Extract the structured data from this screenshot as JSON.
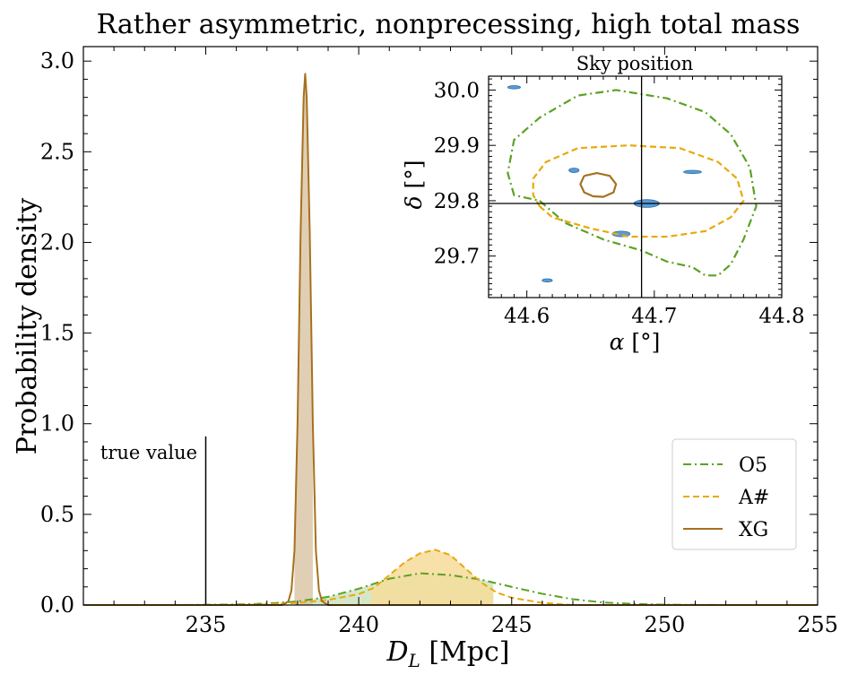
{
  "chart_data": [
    {
      "type": "line",
      "title": "Rather asymmetric, nonprecessing, high total mass",
      "xlabel": "D_L [Mpc]",
      "ylabel": "Probability density",
      "xlim": [
        231,
        255
      ],
      "ylim": [
        0,
        3.08
      ],
      "xticks": [
        235,
        240,
        245,
        250,
        255
      ],
      "yticks": [
        0.0,
        0.5,
        1.0,
        1.5,
        2.0,
        2.5,
        3.0
      ],
      "xtick_labels": [
        "235",
        "240",
        "245",
        "250",
        "255"
      ],
      "ytick_labels": [
        "0.0",
        "0.5",
        "1.0",
        "1.5",
        "2.0",
        "2.5",
        "3.0"
      ],
      "grid": false,
      "legend_position": "lower-right",
      "true_value": {
        "x": 235,
        "label": "true value",
        "line_top": 0.93
      },
      "series": [
        {
          "name": "O5",
          "style": "dashdot",
          "color": "#5ba223",
          "fill": "#cfe3bf",
          "shaded_range": [
            238.2,
            244.4
          ],
          "x": [
            231,
            234,
            236,
            237,
            238,
            239,
            240,
            241,
            242,
            243,
            244,
            245,
            246,
            247,
            248,
            249,
            250,
            252,
            255
          ],
          "y": [
            0.0,
            0.0,
            0.003,
            0.008,
            0.02,
            0.045,
            0.09,
            0.145,
            0.175,
            0.165,
            0.14,
            0.1,
            0.062,
            0.032,
            0.014,
            0.006,
            0.002,
            0.0,
            0.0
          ]
        },
        {
          "name": "A#",
          "style": "dashed",
          "color": "#e8a90a",
          "fill": "#f6dc9a",
          "shaded_range": [
            240.4,
            244.4
          ],
          "x": [
            231,
            236,
            237,
            238,
            239,
            240,
            240.5,
            241,
            241.5,
            242,
            242.5,
            243,
            243.5,
            244,
            244.5,
            245,
            246,
            247,
            255
          ],
          "y": [
            0.0,
            0.0,
            0.004,
            0.012,
            0.028,
            0.06,
            0.095,
            0.165,
            0.235,
            0.285,
            0.305,
            0.275,
            0.2,
            0.125,
            0.07,
            0.04,
            0.012,
            0.0,
            0.0
          ]
        },
        {
          "name": "XG",
          "style": "solid",
          "color": "#a6711f",
          "fill": "#dcc7a8",
          "shaded_range": [
            237.9,
            238.5
          ],
          "x": [
            231,
            237.5,
            237.7,
            237.8,
            237.9,
            238.0,
            238.1,
            238.2,
            238.25,
            238.3,
            238.4,
            238.5,
            238.6,
            238.7,
            238.8,
            239.0,
            255
          ],
          "y": [
            0.0,
            0.0,
            0.02,
            0.08,
            0.3,
            1.0,
            2.05,
            2.8,
            2.93,
            2.8,
            2.05,
            1.0,
            0.3,
            0.08,
            0.02,
            0.0,
            0.0
          ]
        }
      ]
    },
    {
      "type": "scatter",
      "title": "Sky position",
      "xlabel": "α [°]",
      "ylabel": "δ [°]",
      "xlim": [
        44.57,
        44.8
      ],
      "ylim": [
        29.625,
        30.025
      ],
      "xticks": [
        44.6,
        44.7,
        44.8
      ],
      "yticks": [
        29.7,
        29.8,
        29.9,
        30.0
      ],
      "xtick_labels": [
        "44.6",
        "44.7",
        "44.8"
      ],
      "ytick_labels": [
        "29.7",
        "29.8",
        "29.9",
        "30.0"
      ],
      "crosshair": {
        "x": 44.69,
        "y": 29.795
      },
      "contours": [
        {
          "name": "O5",
          "style": "dashdot",
          "color": "#5ba223",
          "points": [
            [
              44.61,
              29.8
            ],
            [
              44.63,
              29.76
            ],
            [
              44.66,
              29.73
            ],
            [
              44.69,
              29.71
            ],
            [
              44.71,
              29.69
            ],
            [
              44.73,
              29.68
            ],
            [
              44.74,
              29.665
            ],
            [
              44.75,
              29.665
            ],
            [
              44.76,
              29.685
            ],
            [
              44.77,
              29.73
            ],
            [
              44.78,
              29.79
            ],
            [
              44.775,
              29.86
            ],
            [
              44.76,
              29.92
            ],
            [
              44.74,
              29.96
            ],
            [
              44.71,
              29.985
            ],
            [
              44.67,
              30.0
            ],
            [
              44.64,
              29.99
            ],
            [
              44.61,
              29.95
            ],
            [
              44.59,
              29.91
            ],
            [
              44.585,
              29.85
            ],
            [
              44.59,
              29.81
            ],
            [
              44.61,
              29.8
            ]
          ]
        },
        {
          "name": "A#",
          "style": "dashed",
          "color": "#e8a90a",
          "points": [
            [
              44.61,
              29.79
            ],
            [
              44.62,
              29.77
            ],
            [
              44.65,
              29.75
            ],
            [
              44.68,
              29.735
            ],
            [
              44.71,
              29.735
            ],
            [
              44.74,
              29.745
            ],
            [
              44.76,
              29.77
            ],
            [
              44.77,
              29.8
            ],
            [
              44.765,
              29.84
            ],
            [
              44.75,
              29.87
            ],
            [
              44.72,
              29.895
            ],
            [
              44.68,
              29.9
            ],
            [
              44.64,
              29.895
            ],
            [
              44.615,
              29.87
            ],
            [
              44.605,
              29.84
            ],
            [
              44.605,
              29.81
            ],
            [
              44.61,
              29.79
            ]
          ]
        },
        {
          "name": "XG",
          "style": "solid",
          "color": "#a6711f",
          "points": [
            [
              44.645,
              29.845
            ],
            [
              44.655,
              29.85
            ],
            [
              44.665,
              29.845
            ],
            [
              44.67,
              29.83
            ],
            [
              44.668,
              29.815
            ],
            [
              44.66,
              29.807
            ],
            [
              44.652,
              29.808
            ],
            [
              44.645,
              29.815
            ],
            [
              44.642,
              29.83
            ],
            [
              44.645,
              29.845
            ]
          ]
        }
      ],
      "blobs": {
        "color": "#5a9bd5",
        "points": [
          [
            44.59,
            30.005,
            0.005,
            0.003
          ],
          [
            44.637,
            29.855,
            0.004,
            0.004
          ],
          [
            44.73,
            29.852,
            0.007,
            0.003
          ],
          [
            44.694,
            29.795,
            0.01,
            0.007
          ],
          [
            44.674,
            29.74,
            0.007,
            0.005
          ],
          [
            44.616,
            29.656,
            0.004,
            0.003
          ]
        ]
      }
    }
  ]
}
